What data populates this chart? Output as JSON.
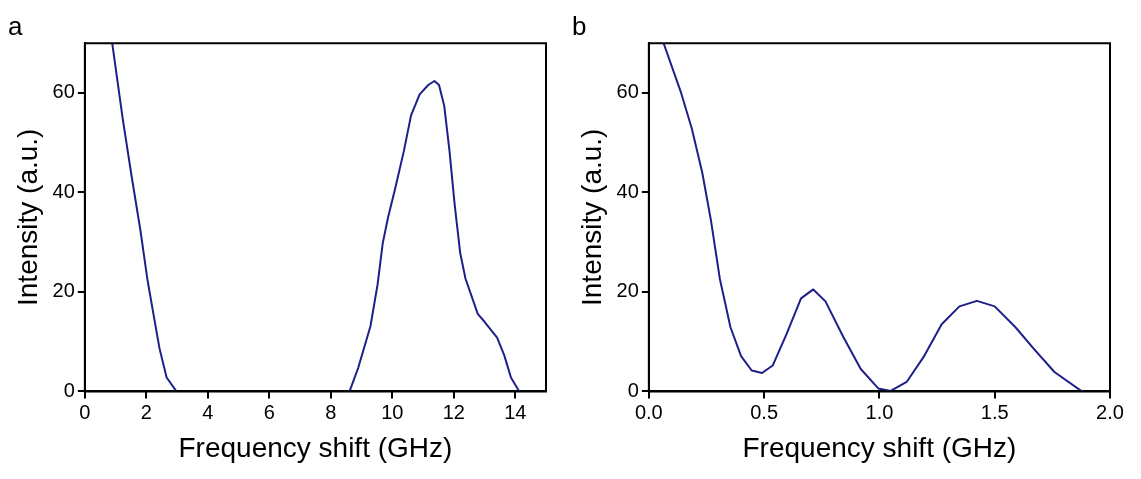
{
  "chart_data": [
    {
      "type": "line",
      "title": "a",
      "xlabel": "Frequency shift (GHz)",
      "ylabel": "Intensity (a.u.)",
      "xlim": [
        0,
        15
      ],
      "xticks": [
        0,
        2,
        4,
        6,
        8,
        10,
        12,
        14
      ],
      "ylim": [
        0,
        70
      ],
      "yticks": [
        0,
        20,
        40,
        60
      ],
      "grid": false,
      "legend": false,
      "marker": "none",
      "line_style": "solid",
      "series": [
        {
          "color": "#1f1f8c",
          "x": [
            0.89,
            1.23,
            1.52,
            1.81,
            2.03,
            2.21,
            2.43,
            2.66,
            2.98,
            5.8,
            8.61,
            8.89,
            9.29,
            9.52,
            9.69,
            9.86,
            10.09,
            10.38,
            10.61,
            10.89,
            11.17,
            11.37,
            11.52,
            11.69,
            11.86,
            12.03,
            12.21,
            12.38,
            12.78,
            13.0,
            13.41,
            13.64,
            13.86,
            14.13
          ],
          "values": [
            70,
            54.9,
            43.3,
            32.3,
            22.7,
            16.3,
            8.6,
            2.8,
            0,
            null,
            0,
            4.7,
            13.1,
            21.4,
            29.8,
            34.9,
            40.7,
            48.4,
            55.5,
            59.7,
            61.6,
            62.4,
            61.6,
            57.4,
            48.4,
            37.5,
            27.8,
            22.7,
            15.6,
            14.0,
            10.8,
            7.3,
            2.8,
            0
          ]
        }
      ]
    },
    {
      "type": "line",
      "title": "b",
      "xlabel": "Frequency shift (GHz)",
      "ylabel": "Intensity (a.u.)",
      "xlim": [
        0,
        2
      ],
      "xticks": [
        {
          "value": 0,
          "label": "0.0"
        },
        0.5,
        {
          "value": 1,
          "label": "1.0"
        },
        1.5,
        {
          "value": 2,
          "label": "2.0"
        }
      ],
      "ylim": [
        0,
        70
      ],
      "yticks": [
        0,
        20,
        40,
        60
      ],
      "grid": false,
      "legend": false,
      "marker": "none",
      "line_style": "solid",
      "series": [
        {
          "color": "#1f1f8c",
          "x": [
            0.064,
            0.14,
            0.186,
            0.232,
            0.27,
            0.308,
            0.354,
            0.4,
            0.446,
            0.491,
            0.537,
            0.598,
            0.66,
            0.713,
            0.766,
            0.843,
            0.919,
            0.995,
            1.049,
            1.118,
            1.194,
            1.27,
            1.347,
            1.423,
            1.5,
            1.59,
            1.667,
            1.759,
            1.878
          ],
          "values": [
            70,
            60,
            52.9,
            43.9,
            34.2,
            22.6,
            12.9,
            7.1,
            4.2,
            3.7,
            5.2,
            11.6,
            18.7,
            20.5,
            18.1,
            11.0,
            4.5,
            0.6,
            0.1,
            1.9,
            7.1,
            13.5,
            17.1,
            18.2,
            17.1,
            12.9,
            8.7,
            3.9,
            0
          ]
        }
      ]
    }
  ]
}
